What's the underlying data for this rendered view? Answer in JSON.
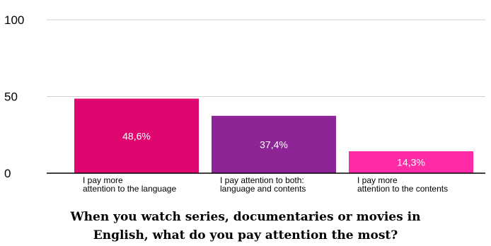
{
  "chart_data": {
    "type": "bar",
    "title": "When you watch series, documentaries or movies in\nEnglish, what do you pay attention the most?",
    "categories": [
      [
        "I pay more",
        "attention to the language"
      ],
      [
        "I pay attention to both:",
        "language and contents"
      ],
      [
        "I pay more",
        "attention to the contents"
      ]
    ],
    "values": [
      48.6,
      37.4,
      14.3
    ],
    "data_labels": [
      "48,6%",
      "37,4%",
      "14,3%"
    ],
    "colors": [
      "#e0066f",
      "#8e2597",
      "#ff2aa6"
    ],
    "yticks": [
      "0",
      "50",
      "100"
    ],
    "ylim": [
      0,
      100
    ],
    "grid": true,
    "legend": "none"
  }
}
